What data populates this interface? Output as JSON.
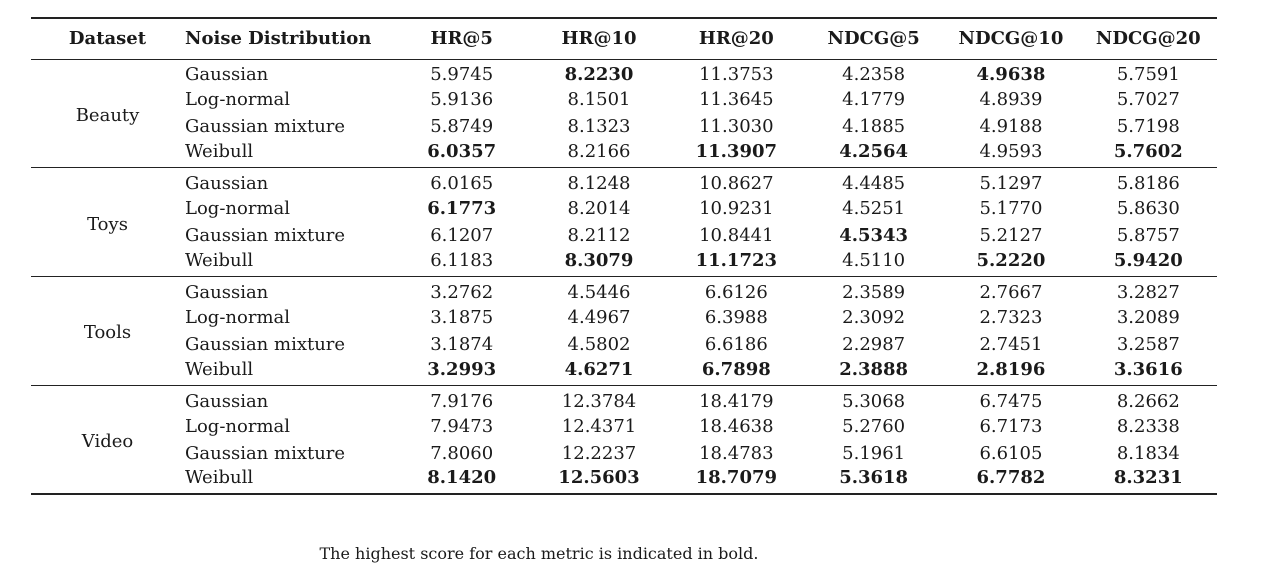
{
  "table": {
    "headers": [
      "Dataset",
      "Noise Distribution",
      "HR@5",
      "HR@10",
      "HR@20",
      "NDCG@5",
      "NDCG@10",
      "NDCG@20"
    ],
    "groups": [
      {
        "dataset": "Beauty",
        "rows": [
          {
            "noise": "Gaussian",
            "values": [
              "5.9745",
              "8.2230",
              "11.3753",
              "4.2358",
              "4.9638",
              "5.7591"
            ],
            "bold": [
              false,
              true,
              false,
              false,
              true,
              false
            ]
          },
          {
            "noise": "Log-normal",
            "values": [
              "5.9136",
              "8.1501",
              "11.3645",
              "4.1779",
              "4.8939",
              "5.7027"
            ],
            "bold": [
              false,
              false,
              false,
              false,
              false,
              false
            ]
          },
          {
            "noise": "Gaussian mixture",
            "values": [
              "5.8749",
              "8.1323",
              "11.3030",
              "4.1885",
              "4.9188",
              "5.7198"
            ],
            "bold": [
              false,
              false,
              false,
              false,
              false,
              false
            ]
          },
          {
            "noise": "Weibull",
            "values": [
              "6.0357",
              "8.2166",
              "11.3907",
              "4.2564",
              "4.9593",
              "5.7602"
            ],
            "bold": [
              true,
              false,
              true,
              true,
              false,
              true
            ]
          }
        ]
      },
      {
        "dataset": "Toys",
        "rows": [
          {
            "noise": "Gaussian",
            "values": [
              "6.0165",
              "8.1248",
              "10.8627",
              "4.4485",
              "5.1297",
              "5.8186"
            ],
            "bold": [
              false,
              false,
              false,
              false,
              false,
              false
            ]
          },
          {
            "noise": "Log-normal",
            "values": [
              "6.1773",
              "8.2014",
              "10.9231",
              "4.5251",
              "5.1770",
              "5.8630"
            ],
            "bold": [
              true,
              false,
              false,
              false,
              false,
              false
            ]
          },
          {
            "noise": "Gaussian mixture",
            "values": [
              "6.1207",
              "8.2112",
              "10.8441",
              "4.5343",
              "5.2127",
              "5.8757"
            ],
            "bold": [
              false,
              false,
              false,
              true,
              false,
              false
            ]
          },
          {
            "noise": "Weibull",
            "values": [
              "6.1183",
              "8.3079",
              "11.1723",
              "4.5110",
              "5.2220",
              "5.9420"
            ],
            "bold": [
              false,
              true,
              true,
              false,
              true,
              true
            ]
          }
        ]
      },
      {
        "dataset": "Tools",
        "rows": [
          {
            "noise": "Gaussian",
            "values": [
              "3.2762",
              "4.5446",
              "6.6126",
              "2.3589",
              "2.7667",
              "3.2827"
            ],
            "bold": [
              false,
              false,
              false,
              false,
              false,
              false
            ]
          },
          {
            "noise": "Log-normal",
            "values": [
              "3.1875",
              "4.4967",
              "6.3988",
              "2.3092",
              "2.7323",
              "3.2089"
            ],
            "bold": [
              false,
              false,
              false,
              false,
              false,
              false
            ]
          },
          {
            "noise": "Gaussian mixture",
            "values": [
              "3.1874",
              "4.5802",
              "6.6186",
              "2.2987",
              "2.7451",
              "3.2587"
            ],
            "bold": [
              false,
              false,
              false,
              false,
              false,
              false
            ]
          },
          {
            "noise": "Weibull",
            "values": [
              "3.2993",
              "4.6271",
              "6.7898",
              "2.3888",
              "2.8196",
              "3.3616"
            ],
            "bold": [
              true,
              true,
              true,
              true,
              true,
              true
            ]
          }
        ]
      },
      {
        "dataset": "Video",
        "rows": [
          {
            "noise": "Gaussian",
            "values": [
              "7.9176",
              "12.3784",
              "18.4179",
              "5.3068",
              "6.7475",
              "8.2662"
            ],
            "bold": [
              false,
              false,
              false,
              false,
              false,
              false
            ]
          },
          {
            "noise": "Log-normal",
            "values": [
              "7.9473",
              "12.4371",
              "18.4638",
              "5.2760",
              "6.7173",
              "8.2338"
            ],
            "bold": [
              false,
              false,
              false,
              false,
              false,
              false
            ]
          },
          {
            "noise": "Gaussian mixture",
            "values": [
              "7.8060",
              "12.2237",
              "18.4783",
              "5.1961",
              "6.6105",
              "8.1834"
            ],
            "bold": [
              false,
              false,
              false,
              false,
              false,
              false
            ]
          },
          {
            "noise": "Weibull",
            "values": [
              "8.1420",
              "12.5603",
              "18.7079",
              "5.3618",
              "6.7782",
              "8.3231"
            ],
            "bold": [
              true,
              true,
              true,
              true,
              true,
              true
            ]
          }
        ]
      }
    ],
    "note": "The highest score for each metric is indicated in bold."
  }
}
